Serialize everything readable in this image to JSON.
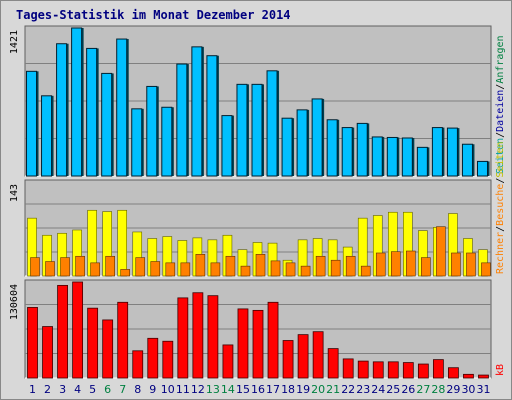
{
  "title": "Tages-Statistik im Monat Dezember 2014",
  "colors": {
    "background": "#d8d8d8",
    "panel": "#c0c0c0",
    "grid": "#808080",
    "hits": "#00c0ff",
    "files": "#00e8d0",
    "pages": "#ffff00",
    "visits": "#ff8000",
    "kbytes": "#ff0000",
    "weekday_label": "#000080",
    "weekend_label": "#008040"
  },
  "chart_data": [
    {
      "type": "bar",
      "panel": "top",
      "ymax_label": "1421",
      "ymax": 1421,
      "right_labels": [
        {
          "text": "Anfragen",
          "color": "#008040"
        },
        {
          "text": "/",
          "color": "#000000"
        },
        {
          "text": "Dateien",
          "color": "#0000a0"
        },
        {
          "text": "/",
          "color": "#000000"
        },
        {
          "text": "Seiten",
          "color": "#00a0a0"
        }
      ],
      "categories": [
        "1",
        "2",
        "3",
        "4",
        "5",
        "6",
        "7",
        "8",
        "9",
        "10",
        "11",
        "12",
        "13",
        "14",
        "15",
        "16",
        "17",
        "18",
        "19",
        "20",
        "21",
        "22",
        "23",
        "24",
        "25",
        "26",
        "27",
        "28",
        "29",
        "30",
        "31"
      ],
      "series": [
        {
          "name": "Anfragen",
          "color": "#00c0ff",
          "values": [
            1005,
            770,
            1270,
            1421,
            1225,
            985,
            1315,
            645,
            860,
            660,
            1075,
            1240,
            1155,
            580,
            880,
            880,
            1010,
            555,
            635,
            740,
            540,
            465,
            505,
            375,
            370,
            365,
            275,
            465,
            460,
            305,
            140
          ]
        },
        {
          "name": "Dateien",
          "color": "#00e8d0",
          "values": [
            1005,
            770,
            1270,
            1421,
            1225,
            985,
            1315,
            645,
            860,
            660,
            1075,
            1240,
            1155,
            580,
            880,
            880,
            1010,
            555,
            635,
            740,
            540,
            465,
            505,
            375,
            370,
            365,
            275,
            465,
            460,
            305,
            140
          ]
        }
      ]
    },
    {
      "type": "bar",
      "panel": "middle",
      "ymax_label": "143",
      "ymax": 143,
      "right_labels": [
        {
          "text": "Seiten",
          "color": "#c0c000"
        },
        {
          "text": "/",
          "color": "#000000"
        },
        {
          "text": "Besuche",
          "color": "#ff8000"
        },
        {
          "text": "/",
          "color": "#000000"
        },
        {
          "text": "Rechner",
          "color": "#ff8000"
        }
      ],
      "categories": [
        "1",
        "2",
        "3",
        "4",
        "5",
        "6",
        "7",
        "8",
        "9",
        "10",
        "11",
        "12",
        "13",
        "14",
        "15",
        "16",
        "17",
        "18",
        "19",
        "20",
        "21",
        "22",
        "23",
        "24",
        "25",
        "26",
        "27",
        "28",
        "29",
        "30",
        "31"
      ],
      "series": [
        {
          "name": "Seiten",
          "color": "#ffff00",
          "values": [
            88,
            62,
            65,
            70,
            100,
            98,
            100,
            67,
            57,
            60,
            54,
            58,
            55,
            62,
            40,
            51,
            50,
            24,
            55,
            57,
            55,
            44,
            88,
            92,
            97,
            97,
            69,
            74,
            95,
            57,
            40
          ]
        },
        {
          "name": "Besuche",
          "color": "#ff8000",
          "values": [
            28,
            22,
            28,
            30,
            20,
            30,
            10,
            28,
            22,
            20,
            20,
            33,
            20,
            30,
            15,
            33,
            23,
            20,
            15,
            30,
            24,
            30,
            15,
            35,
            37,
            38,
            28,
            75,
            35,
            35,
            20
          ]
        }
      ]
    },
    {
      "type": "bar",
      "panel": "bottom",
      "ymax_label": "130604",
      "ymax": 130604,
      "right_labels": [
        {
          "text": "kB",
          "color": "#ff0000"
        }
      ],
      "categories": [
        "1",
        "2",
        "3",
        "4",
        "5",
        "6",
        "7",
        "8",
        "9",
        "10",
        "11",
        "12",
        "13",
        "14",
        "15",
        "16",
        "17",
        "18",
        "19",
        "20",
        "21",
        "22",
        "23",
        "24",
        "25",
        "26",
        "27",
        "28",
        "29",
        "30",
        "31"
      ],
      "series": [
        {
          "name": "kB",
          "color": "#ff0000",
          "values": [
            96000,
            70000,
            126000,
            130604,
            95000,
            79000,
            103000,
            37000,
            54000,
            50000,
            109000,
            116000,
            112000,
            45000,
            94000,
            92000,
            103000,
            51000,
            59000,
            63000,
            40000,
            26000,
            23000,
            22000,
            22000,
            21000,
            19000,
            25000,
            14000,
            5000,
            4000
          ]
        }
      ]
    }
  ],
  "x_labels": [
    {
      "text": "1",
      "weekend": false
    },
    {
      "text": "2",
      "weekend": false
    },
    {
      "text": "3",
      "weekend": false
    },
    {
      "text": "4",
      "weekend": false
    },
    {
      "text": "5",
      "weekend": false
    },
    {
      "text": "6",
      "weekend": true
    },
    {
      "text": "7",
      "weekend": true
    },
    {
      "text": "8",
      "weekend": false
    },
    {
      "text": "9",
      "weekend": false
    },
    {
      "text": "10",
      "weekend": false
    },
    {
      "text": "11",
      "weekend": false
    },
    {
      "text": "12",
      "weekend": false
    },
    {
      "text": "13",
      "weekend": true
    },
    {
      "text": "14",
      "weekend": true
    },
    {
      "text": "15",
      "weekend": false
    },
    {
      "text": "16",
      "weekend": false
    },
    {
      "text": "17",
      "weekend": false
    },
    {
      "text": "18",
      "weekend": false
    },
    {
      "text": "19",
      "weekend": false
    },
    {
      "text": "20",
      "weekend": true
    },
    {
      "text": "21",
      "weekend": true
    },
    {
      "text": "22",
      "weekend": false
    },
    {
      "text": "23",
      "weekend": false
    },
    {
      "text": "24",
      "weekend": false
    },
    {
      "text": "25",
      "weekend": false
    },
    {
      "text": "26",
      "weekend": false
    },
    {
      "text": "27",
      "weekend": true
    },
    {
      "text": "28",
      "weekend": true
    },
    {
      "text": "29",
      "weekend": false
    },
    {
      "text": "30",
      "weekend": false
    },
    {
      "text": "31",
      "weekend": false
    }
  ]
}
